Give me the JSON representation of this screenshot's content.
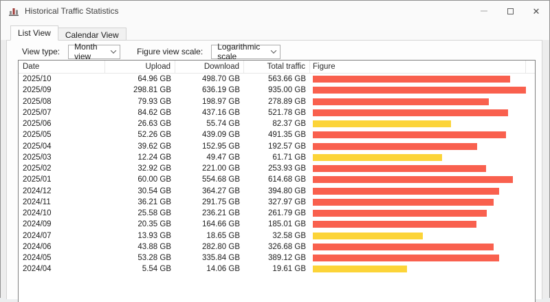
{
  "window": {
    "title": "Historical Traffic Statistics",
    "controls": {
      "minimize": "minimize",
      "maximize": "maximize",
      "close": "close"
    }
  },
  "tabs": [
    {
      "label": "List View",
      "active": true
    },
    {
      "label": "Calendar View",
      "active": false
    }
  ],
  "toolbar": {
    "view_type_label": "View type:",
    "view_type_value": "Month view",
    "scale_label": "Figure view scale:",
    "scale_value": "Logarithmic scale"
  },
  "table": {
    "columns": [
      "Date",
      "Upload",
      "Download",
      "Total traffic",
      "Figure"
    ],
    "rows": [
      {
        "date": "2025/10",
        "upload": "64.96 GB",
        "download": "498.70 GB",
        "total": "563.66 GB",
        "total_gb": 563.66,
        "bar_color": "red"
      },
      {
        "date": "2025/09",
        "upload": "298.81 GB",
        "download": "636.19 GB",
        "total": "935.00 GB",
        "total_gb": 935.0,
        "bar_color": "red"
      },
      {
        "date": "2025/08",
        "upload": "79.93 GB",
        "download": "198.97 GB",
        "total": "278.89 GB",
        "total_gb": 278.89,
        "bar_color": "red"
      },
      {
        "date": "2025/07",
        "upload": "84.62 GB",
        "download": "437.16 GB",
        "total": "521.78 GB",
        "total_gb": 521.78,
        "bar_color": "red"
      },
      {
        "date": "2025/06",
        "upload": "26.63 GB",
        "download": "55.74 GB",
        "total": "82.37 GB",
        "total_gb": 82.37,
        "bar_color": "yellow"
      },
      {
        "date": "2025/05",
        "upload": "52.26 GB",
        "download": "439.09 GB",
        "total": "491.35 GB",
        "total_gb": 491.35,
        "bar_color": "red"
      },
      {
        "date": "2025/04",
        "upload": "39.62 GB",
        "download": "152.95 GB",
        "total": "192.57 GB",
        "total_gb": 192.57,
        "bar_color": "red"
      },
      {
        "date": "2025/03",
        "upload": "12.24 GB",
        "download": "49.47 GB",
        "total": "61.71 GB",
        "total_gb": 61.71,
        "bar_color": "yellow"
      },
      {
        "date": "2025/02",
        "upload": "32.92 GB",
        "download": "221.00 GB",
        "total": "253.93 GB",
        "total_gb": 253.93,
        "bar_color": "red"
      },
      {
        "date": "2025/01",
        "upload": "60.00 GB",
        "download": "554.68 GB",
        "total": "614.68 GB",
        "total_gb": 614.68,
        "bar_color": "red"
      },
      {
        "date": "2024/12",
        "upload": "30.54 GB",
        "download": "364.27 GB",
        "total": "394.80 GB",
        "total_gb": 394.8,
        "bar_color": "red"
      },
      {
        "date": "2024/11",
        "upload": "36.21 GB",
        "download": "291.75 GB",
        "total": "327.97 GB",
        "total_gb": 327.97,
        "bar_color": "red"
      },
      {
        "date": "2024/10",
        "upload": "25.58 GB",
        "download": "236.21 GB",
        "total": "261.79 GB",
        "total_gb": 261.79,
        "bar_color": "red"
      },
      {
        "date": "2024/09",
        "upload": "20.35 GB",
        "download": "164.66 GB",
        "total": "185.01 GB",
        "total_gb": 185.01,
        "bar_color": "red"
      },
      {
        "date": "2024/07",
        "upload": "13.93 GB",
        "download": "18.65 GB",
        "total": "32.58 GB",
        "total_gb": 32.58,
        "bar_color": "yellow"
      },
      {
        "date": "2024/06",
        "upload": "43.88 GB",
        "download": "282.80 GB",
        "total": "326.68 GB",
        "total_gb": 326.68,
        "bar_color": "red"
      },
      {
        "date": "2024/05",
        "upload": "53.28 GB",
        "download": "335.84 GB",
        "total": "389.12 GB",
        "total_gb": 389.12,
        "bar_color": "red"
      },
      {
        "date": "2024/04",
        "upload": "5.54 GB",
        "download": "14.06 GB",
        "total": "19.61 GB",
        "total_gb": 19.61,
        "bar_color": "yellow"
      }
    ]
  },
  "bar_colors": {
    "red": "#f9604e",
    "yellow": "#fcd438"
  }
}
